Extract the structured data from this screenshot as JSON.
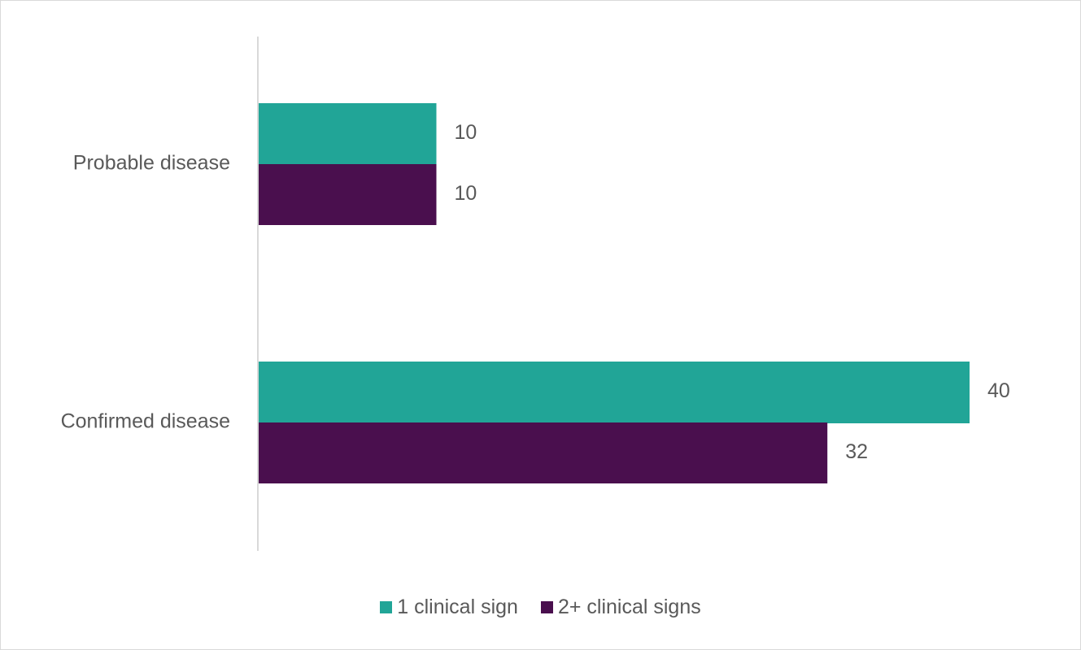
{
  "chart_data": {
    "type": "bar",
    "orientation": "horizontal",
    "categories": [
      "Probable disease",
      "Confirmed disease"
    ],
    "series": [
      {
        "name": "1 clinical sign",
        "values": [
          10,
          40
        ],
        "color": "#21A597"
      },
      {
        "name": "2+ clinical signs",
        "values": [
          10,
          32
        ],
        "color": "#4A0F4E"
      }
    ],
    "xlim": [
      0,
      45
    ],
    "grid": false,
    "legend_position": "bottom",
    "data_labels": true
  }
}
